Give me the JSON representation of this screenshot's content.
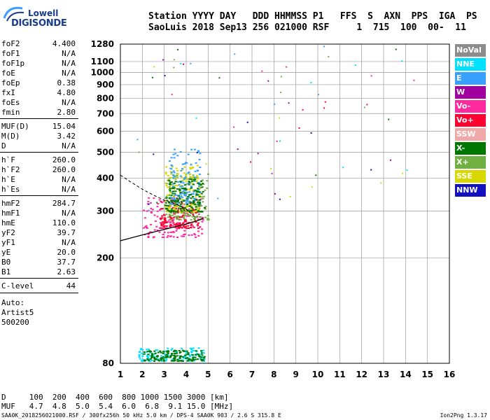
{
  "logo": {
    "line1": "Lowell",
    "line2": "DIGISONDE"
  },
  "header": {
    "line1": "Station YYYY DAY   DDD HHMMSS P1   FFS  S  AXN  PPS  IGA  PS",
    "line2": "SaoLuis 2018 Sep13 256 021000 RSF     1  715  100  00-  11"
  },
  "params": [
    {
      "k": "foF2",
      "v": "4.400"
    },
    {
      "k": "foF1",
      "v": "N/A"
    },
    {
      "k": "foF1p",
      "v": "N/A"
    },
    {
      "k": "foE",
      "v": "N/A"
    },
    {
      "k": "foEp",
      "v": "0.38"
    },
    {
      "k": "fxI",
      "v": "4.80"
    },
    {
      "k": "foEs",
      "v": "N/A"
    },
    {
      "k": "fmin",
      "v": "2.80"
    },
    {
      "k": "MUF(D)",
      "v": "15.04"
    },
    {
      "k": "M(D)",
      "v": "3.42"
    },
    {
      "k": "D",
      "v": "N/A"
    },
    {
      "k": "h`F",
      "v": "260.0"
    },
    {
      "k": "h`F2",
      "v": "260.0"
    },
    {
      "k": "h`E",
      "v": "N/A"
    },
    {
      "k": "h`Es",
      "v": "N/A"
    },
    {
      "k": "hmF2",
      "v": "284.7"
    },
    {
      "k": "hmF1",
      "v": "N/A"
    },
    {
      "k": "hmE",
      "v": "110.0"
    },
    {
      "k": "yF2",
      "v": "39.7"
    },
    {
      "k": "yF1",
      "v": "N/A"
    },
    {
      "k": "yE",
      "v": "20.0"
    },
    {
      "k": "B0",
      "v": "37.7"
    },
    {
      "k": "B1",
      "v": "2.63"
    },
    {
      "k": "C-level",
      "v": "44"
    }
  ],
  "auto": [
    "Auto:",
    "Artist5",
    "500200"
  ],
  "legend": [
    {
      "label": "NoVal",
      "color": "#8c8c8c"
    },
    {
      "label": "NNE",
      "color": "#00e0ff"
    },
    {
      "label": "E",
      "color": "#3aa0ff"
    },
    {
      "label": "W",
      "color": "#a000a0"
    },
    {
      "label": "Vo-",
      "color": "#ff2aa0"
    },
    {
      "label": "Vo+",
      "color": "#ff0030"
    },
    {
      "label": "SSW",
      "color": "#f0a8a8"
    },
    {
      "label": "X-",
      "color": "#007800"
    },
    {
      "label": "X+",
      "color": "#70b040"
    },
    {
      "label": "SSE",
      "color": "#d8d800"
    },
    {
      "label": "NNW",
      "color": "#1010c0"
    }
  ],
  "bottom": {
    "line1": "D     100  200  400  600  800 1000 1500 3000 [km]",
    "line2": "MUF   4.7  4.8  5.0  5.4  6.0  6.8  9.1 15.0 [MHz]"
  },
  "footer": "SAA0K_2018256021000.RSF / 300fx256h 50 kHz 5.0 km / DPS-4 SAA0K 903 / 2.6 S 315.8 E",
  "footer_right": "Ion2Png 1.3.17",
  "chart_data": {
    "type": "scatter",
    "xlabel": "",
    "ylabel": "",
    "xlim": [
      1,
      16
    ],
    "ylim": [
      80,
      1280
    ],
    "x_ticks": [
      1,
      2,
      3,
      4,
      5,
      6,
      7,
      8,
      9,
      10,
      11,
      12,
      13,
      14,
      15,
      16
    ],
    "y_ticks": [
      80,
      200,
      300,
      400,
      500,
      600,
      700,
      800,
      900,
      1000,
      1100,
      1280
    ],
    "y_scale": "log",
    "grid": true,
    "trace": {
      "name": "",
      "points": [
        [
          1.0,
          232
        ],
        [
          1.5,
          238
        ],
        [
          2.0,
          244
        ],
        [
          2.5,
          250
        ],
        [
          3.0,
          256
        ],
        [
          3.5,
          262
        ],
        [
          4.0,
          268
        ],
        [
          4.5,
          276
        ],
        [
          4.8,
          282
        ]
      ]
    },
    "profile": {
      "name": "",
      "points": [
        [
          1.0,
          410
        ],
        [
          1.5,
          385
        ],
        [
          2.0,
          363
        ],
        [
          2.5,
          345
        ],
        [
          3.0,
          330
        ],
        [
          3.5,
          320
        ],
        [
          4.0,
          305
        ],
        [
          4.4,
          285
        ]
      ]
    },
    "echo_clusters": [
      {
        "color": "#ff2aa0",
        "x": [
          2.0,
          4.8
        ],
        "y": [
          240,
          340
        ]
      },
      {
        "color": "#ff0030",
        "x": [
          2.8,
          4.6
        ],
        "y": [
          260,
          330
        ]
      },
      {
        "color": "#70b040",
        "x": [
          3.0,
          5.0
        ],
        "y": [
          280,
          420
        ]
      },
      {
        "color": "#d8d800",
        "x": [
          3.0,
          4.6
        ],
        "y": [
          300,
          460
        ]
      },
      {
        "color": "#3aa0ff",
        "x": [
          3.2,
          4.6
        ],
        "y": [
          320,
          520
        ]
      },
      {
        "color": "#007800",
        "x": [
          3.0,
          4.8
        ],
        "y": [
          300,
          400
        ]
      },
      {
        "color": "#00e0ff",
        "x": [
          1.8,
          4.8
        ],
        "y": [
          82,
          92
        ]
      },
      {
        "color": "#007800",
        "x": [
          2.0,
          4.8
        ],
        "y": [
          82,
          90
        ]
      }
    ]
  }
}
